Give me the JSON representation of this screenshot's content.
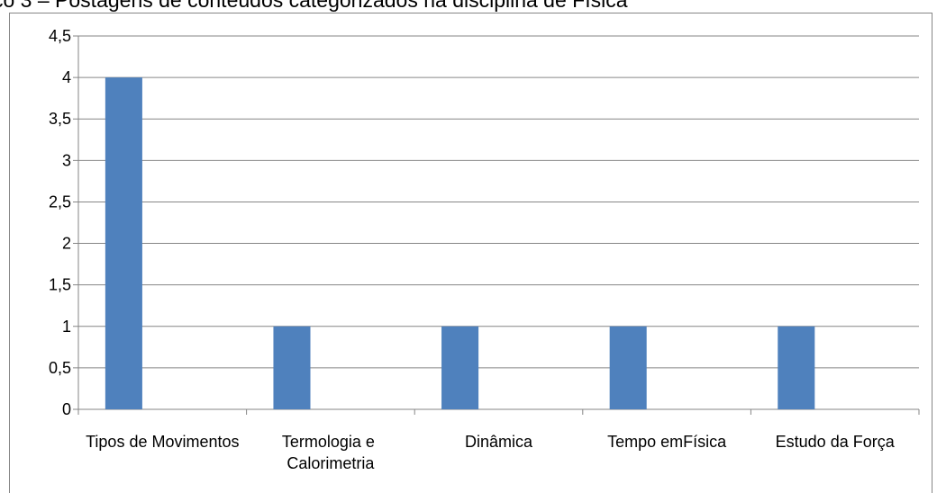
{
  "chart_data": {
    "type": "bar",
    "title": "co 3 – Postagens de conteúdos categorizados na disciplina de Física",
    "categories": [
      "Tipos de Movimentos",
      "Termologia e Calorimetria",
      "Dinâmica",
      "Tempo emFísica",
      "Estudo da Força"
    ],
    "values": [
      4,
      1,
      1,
      1,
      1
    ],
    "color": "#4f81bd",
    "ylim": [
      0,
      4.5
    ],
    "yticks": [
      0,
      {
        "value": 0.5,
        "label": "0,5"
      },
      1,
      {
        "value": 1.5,
        "label": "1,5"
      },
      2,
      {
        "value": 2.5,
        "label": "2,5"
      },
      3,
      {
        "value": 3.5,
        "label": "3,5"
      },
      4,
      {
        "value": 4.5,
        "label": "4,5"
      }
    ],
    "grid": true
  }
}
